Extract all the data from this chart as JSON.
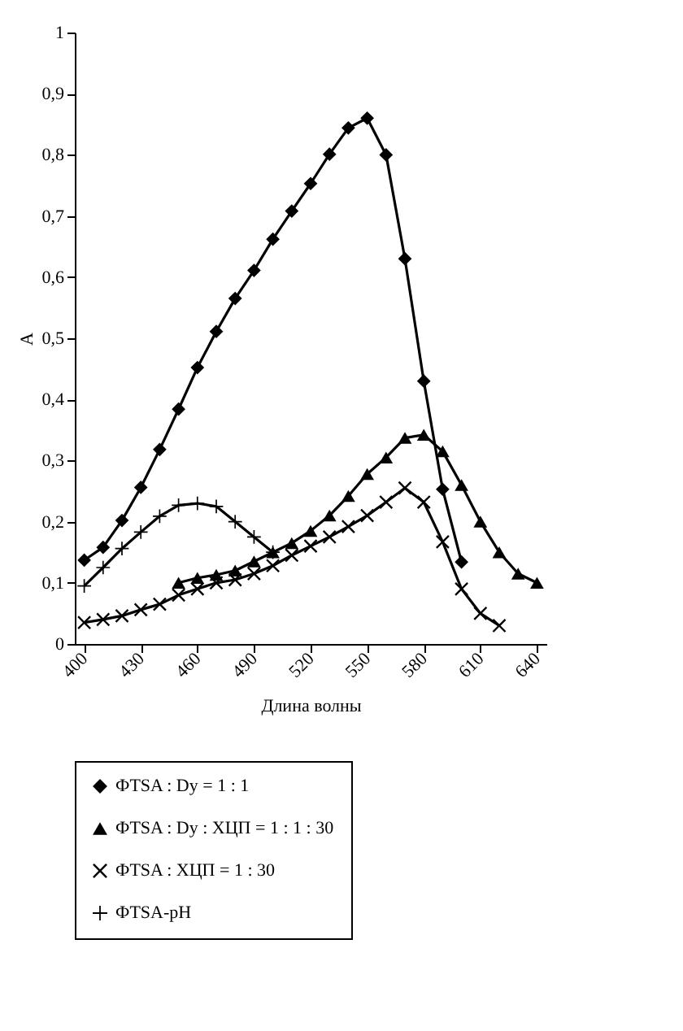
{
  "chart_data": {
    "type": "line",
    "xlabel": "Длина волны",
    "ylabel": "A",
    "xlim": [
      395,
      645
    ],
    "xticks": [
      400,
      430,
      460,
      490,
      520,
      550,
      580,
      610,
      640
    ],
    "ylim": [
      0,
      1
    ],
    "yticks": [
      0,
      {
        "value": 0.1,
        "label": "0,1"
      },
      {
        "value": 0.2,
        "label": "0,2"
      },
      {
        "value": 0.3,
        "label": "0,3"
      },
      {
        "value": 0.4,
        "label": "0,4"
      },
      {
        "value": 0.5,
        "label": "0,5"
      },
      {
        "value": 0.6,
        "label": "0,6"
      },
      {
        "value": 0.7,
        "label": "0,7"
      },
      {
        "value": 0.8,
        "label": "0,8"
      },
      {
        "value": 0.9,
        "label": "0,9"
      },
      1
    ],
    "grid": false,
    "legend": "bottom",
    "series": [
      {
        "name": "ФTSA : Dy = 1 : 1",
        "color": "#000000",
        "marker": "diamond",
        "x": [
          400,
          410,
          420,
          430,
          440,
          450,
          460,
          470,
          480,
          490,
          500,
          510,
          520,
          530,
          540,
          550,
          560,
          570,
          580,
          590,
          600
        ],
        "values": [
          0.137,
          0.158,
          0.202,
          0.256,
          0.318,
          0.384,
          0.452,
          0.511,
          0.565,
          0.611,
          0.662,
          0.708,
          0.753,
          0.801,
          0.844,
          0.86,
          0.8,
          0.63,
          0.43,
          0.253,
          0.134
        ]
      },
      {
        "name": "ФTSA : Dy : ХЦП = 1 : 1 : 30",
        "color": "#000000",
        "marker": "triangle",
        "x": [
          450,
          460,
          470,
          480,
          490,
          500,
          510,
          520,
          530,
          540,
          550,
          560,
          570,
          580,
          590,
          600,
          610,
          620,
          630,
          640
        ],
        "values": [
          0.1,
          0.108,
          0.113,
          0.12,
          0.135,
          0.15,
          0.165,
          0.185,
          0.21,
          0.242,
          0.278,
          0.305,
          0.337,
          0.342,
          0.315,
          0.26,
          0.2,
          0.15,
          0.115,
          0.1
        ]
      },
      {
        "name": "ФTSA : ХЦП = 1 : 30",
        "color": "#000000",
        "marker": "cross",
        "x": [
          400,
          410,
          420,
          430,
          440,
          450,
          460,
          470,
          480,
          490,
          500,
          510,
          520,
          530,
          540,
          550,
          560,
          570,
          580,
          590,
          600,
          610,
          620
        ],
        "values": [
          0.035,
          0.04,
          0.046,
          0.056,
          0.065,
          0.08,
          0.09,
          0.1,
          0.105,
          0.115,
          0.128,
          0.145,
          0.16,
          0.175,
          0.192,
          0.21,
          0.232,
          0.255,
          0.232,
          0.167,
          0.09,
          0.05,
          0.03
        ]
      },
      {
        "name": "ФTSA-pH",
        "color": "#000000",
        "marker": "plus",
        "x": [
          400,
          410,
          420,
          430,
          440,
          450,
          460,
          470,
          480,
          490,
          500
        ],
        "values": [
          0.095,
          0.125,
          0.156,
          0.183,
          0.209,
          0.227,
          0.23,
          0.225,
          0.2,
          0.175,
          0.15
        ]
      }
    ]
  }
}
